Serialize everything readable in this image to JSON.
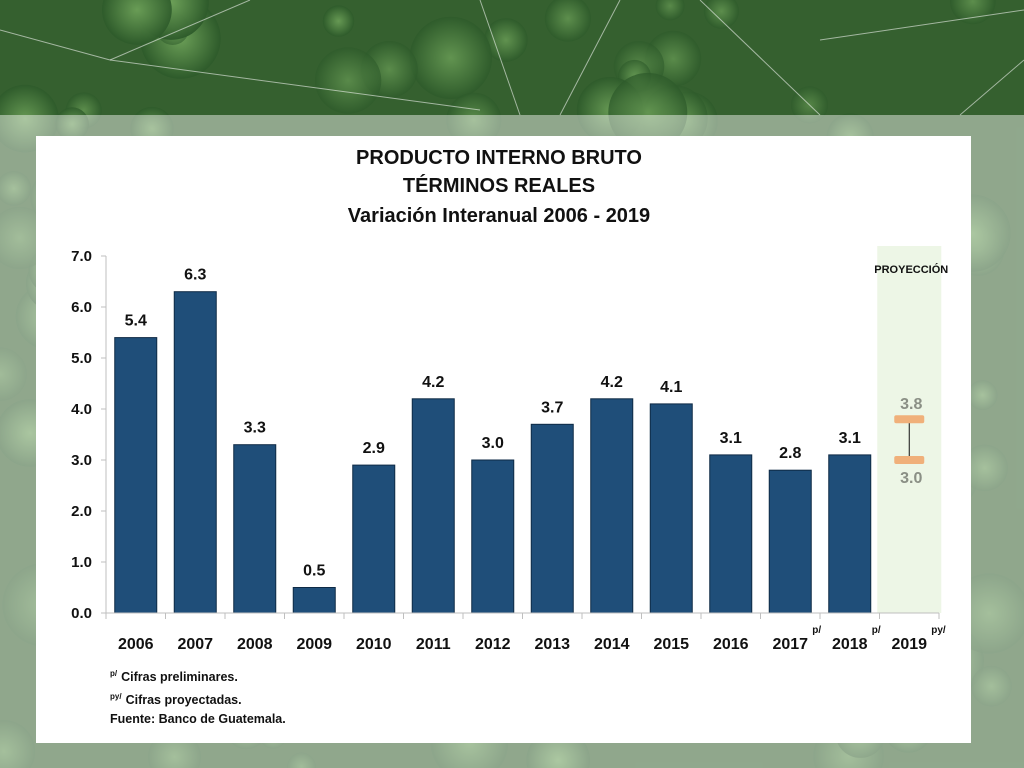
{
  "chart_data": {
    "type": "bar",
    "title": [
      "PRODUCTO INTERNO BRUTO",
      "TÉRMINOS REALES",
      "Variación Interanual 2006 - 2019"
    ],
    "categories": [
      "2006",
      "2007",
      "2008",
      "2009",
      "2010",
      "2011",
      "2012",
      "2013",
      "2014",
      "2015",
      "2016",
      "2017",
      "2018",
      "2019"
    ],
    "category_markers": {
      "2017": "p/",
      "2018": "p/",
      "2019": "py/"
    },
    "values": [
      5.4,
      6.3,
      3.3,
      0.5,
      2.9,
      4.2,
      3.0,
      3.7,
      4.2,
      4.1,
      3.1,
      2.8,
      3.1,
      null
    ],
    "data_labels": [
      "5.4",
      "6.3",
      "3.3",
      "0.5",
      "2.9",
      "4.2",
      "3.0",
      "3.7",
      "4.2",
      "4.1",
      "3.1",
      "2.8",
      "3.1",
      ""
    ],
    "projection": {
      "label": "PROYECCIÓN",
      "category": "2019",
      "high": 3.8,
      "low": 3.0,
      "high_label": "3.8",
      "low_label": "3.0"
    },
    "yticks": [
      "7.0",
      "6.0",
      "5.0",
      "4.0",
      "3.0",
      "2.0",
      "1.0",
      "0.0"
    ],
    "ylim": [
      0,
      7
    ],
    "xlabel": "",
    "ylabel": "",
    "grid": false,
    "colors": {
      "bar": "#1f4e79",
      "projection_band": "#edf6e6",
      "projection_marker": "#f0b07a",
      "projection_text": "#8a8f85"
    }
  },
  "notes": {
    "p_marker": "p/",
    "p_text": "Cifras preliminares.",
    "py_marker": "py/",
    "py_text": "Cifras proyectadas.",
    "source": "Fuente: Banco de Guatemala."
  }
}
